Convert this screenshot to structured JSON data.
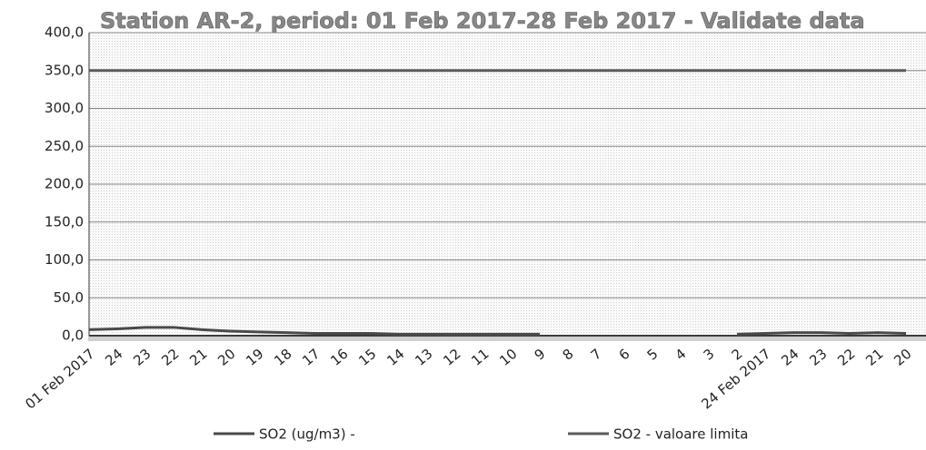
{
  "chart_data": {
    "type": "line",
    "title": "Station AR-2, period: 01 Feb 2017-28 Feb 2017 - Validate data",
    "categories": [
      "01 Feb 2017",
      "24",
      "23",
      "22",
      "21",
      "20",
      "19",
      "18",
      "17",
      "16",
      "15",
      "14",
      "13",
      "12",
      "11",
      "10",
      "9",
      "8",
      "7",
      "6",
      "5",
      "4",
      "3",
      "2",
      "24 Feb 2017",
      "24",
      "23",
      "22",
      "21",
      "20"
    ],
    "series": [
      {
        "name": "SO2 (ug/m3)  -",
        "color": "#4a4a4a",
        "values": [
          8,
          9,
          11,
          11,
          8,
          6,
          5,
          4,
          3,
          3,
          3,
          2,
          2,
          2,
          2,
          2,
          2,
          null,
          null,
          null,
          null,
          null,
          null,
          2,
          3,
          4,
          4,
          3,
          4,
          3
        ]
      },
      {
        "name": "SO2 - valoare limita",
        "color": "#5a5a5a",
        "values": [
          350,
          350,
          350,
          350,
          350,
          350,
          350,
          350,
          350,
          350,
          350,
          350,
          350,
          350,
          350,
          350,
          350,
          350,
          350,
          350,
          350,
          350,
          350,
          350,
          350,
          350,
          350,
          350,
          350,
          350
        ]
      }
    ],
    "ylim": [
      0,
      400
    ],
    "yticks": [
      {
        "value": 0,
        "label": "0,0"
      },
      {
        "value": 50,
        "label": "50,0"
      },
      {
        "value": 100,
        "label": "100,0"
      },
      {
        "value": 150,
        "label": "150,0"
      },
      {
        "value": 200,
        "label": "200,0"
      },
      {
        "value": 250,
        "label": "250,0"
      },
      {
        "value": 300,
        "label": "300,0"
      },
      {
        "value": 350,
        "label": "350,0"
      },
      {
        "value": 400,
        "label": "400,0"
      }
    ],
    "grid": true
  }
}
